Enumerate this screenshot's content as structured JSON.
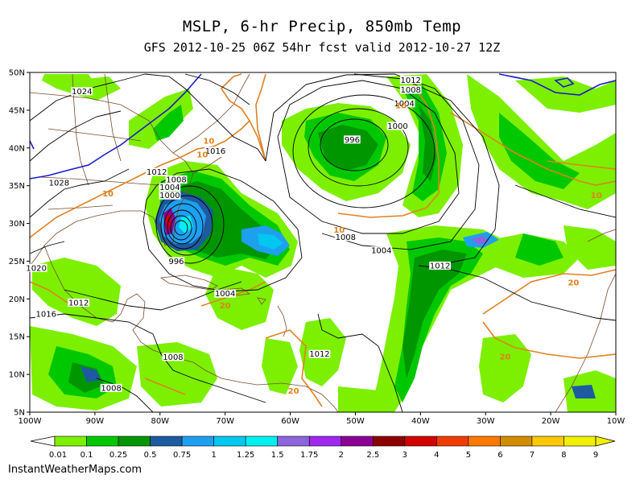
{
  "header": {
    "title": "MSLP, 6-hr Precip, 850mb Temp",
    "subtitle": "GFS 2012-10-25 06Z 54hr fcst valid 2012-10-27 12Z"
  },
  "map": {
    "lon_range": [
      -100,
      -10
    ],
    "lat_range": [
      5,
      50
    ],
    "lon_ticks": [
      {
        "lon": -100,
        "label": "100W"
      },
      {
        "lon": -90,
        "label": "90W"
      },
      {
        "lon": -80,
        "label": "80W"
      },
      {
        "lon": -70,
        "label": "70W"
      },
      {
        "lon": -60,
        "label": "60W"
      },
      {
        "lon": -50,
        "label": "50W"
      },
      {
        "lon": -40,
        "label": "40W"
      },
      {
        "lon": -30,
        "label": "30W"
      },
      {
        "lon": -20,
        "label": "20W"
      },
      {
        "lon": -10,
        "label": "10W"
      }
    ],
    "lat_ticks": [
      {
        "lat": 50,
        "label": "50N"
      },
      {
        "lat": 45,
        "label": "45N"
      },
      {
        "lat": 40,
        "label": "40N"
      },
      {
        "lat": 35,
        "label": "35N"
      },
      {
        "lat": 30,
        "label": "30N"
      },
      {
        "lat": 25,
        "label": "25N"
      },
      {
        "lat": 20,
        "label": "20N"
      },
      {
        "lat": 15,
        "label": "15N"
      },
      {
        "lat": 10,
        "label": "10N"
      },
      {
        "lat": 5,
        "label": "5N"
      }
    ],
    "colors": {
      "isobar": "#000000",
      "temp_contour": "#e08020",
      "freezing_line": "#1a1acc",
      "coastline": "#7a4a2a",
      "land": "#ffffff"
    },
    "isobar_labels": [
      {
        "text": "1024",
        "lon": -92,
        "lat": 47.3
      },
      {
        "text": "1012",
        "lon": -41.5,
        "lat": 48.8
      },
      {
        "text": "1008",
        "lon": -41.5,
        "lat": 47.5
      },
      {
        "text": "1004",
        "lon": -42.5,
        "lat": 45.7
      },
      {
        "text": "1000",
        "lon": -43.5,
        "lat": 42.7
      },
      {
        "text": "996",
        "lon": -50.5,
        "lat": 40.9
      },
      {
        "text": "1016",
        "lon": -71.5,
        "lat": 39.4
      },
      {
        "text": "1012",
        "lon": -80.5,
        "lat": 36.6
      },
      {
        "text": "1008",
        "lon": -77.5,
        "lat": 35.6
      },
      {
        "text": "1004",
        "lon": -78.5,
        "lat": 34.6
      },
      {
        "text": "1000",
        "lon": -78.5,
        "lat": 33.5
      },
      {
        "text": "996",
        "lon": -77.5,
        "lat": 24.8
      },
      {
        "text": "1028",
        "lon": -95.5,
        "lat": 35.2
      },
      {
        "text": "1004",
        "lon": -46,
        "lat": 26.2
      },
      {
        "text": "1008",
        "lon": -51.5,
        "lat": 28.0
      },
      {
        "text": "1012",
        "lon": -37,
        "lat": 24.2
      },
      {
        "text": "1004",
        "lon": -70,
        "lat": 20.5
      },
      {
        "text": "1012",
        "lon": -92.5,
        "lat": 19.3
      },
      {
        "text": "1016",
        "lon": -97.5,
        "lat": 17.8
      },
      {
        "text": "1020",
        "lon": -99,
        "lat": 23.9
      },
      {
        "text": "1008",
        "lon": -78,
        "lat": 12.1
      },
      {
        "text": "1008",
        "lon": -87.5,
        "lat": 8.0
      },
      {
        "text": "1012",
        "lon": -55.5,
        "lat": 12.5
      }
    ],
    "temp_labels": [
      {
        "text": "10",
        "lon": -43,
        "lat": 45.7
      },
      {
        "text": "10",
        "lon": -72.5,
        "lat": 41.0
      },
      {
        "text": "10",
        "lon": -73.5,
        "lat": 39.2
      },
      {
        "text": "10",
        "lon": -88,
        "lat": 34.0
      },
      {
        "text": "10",
        "lon": -52.5,
        "lat": 29.2
      },
      {
        "text": "10",
        "lon": -13,
        "lat": 33.8
      },
      {
        "text": "20",
        "lon": -16.5,
        "lat": 22.2
      },
      {
        "text": "20",
        "lon": -70,
        "lat": 19.2
      },
      {
        "text": "20",
        "lon": -27,
        "lat": 12.4
      },
      {
        "text": "20",
        "lon": -59.5,
        "lat": 7.9
      }
    ]
  },
  "colorbar": {
    "labels": [
      "0.01",
      "0.1",
      "0.25",
      "0.5",
      "0.75",
      "1",
      "1.25",
      "1.5",
      "1.75",
      "2",
      "2.5",
      "3",
      "4",
      "5",
      "6",
      "7",
      "8",
      "9"
    ],
    "colors": [
      "#7cf000",
      "#00c800",
      "#009600",
      "#1e5aa0",
      "#1ea0f0",
      "#00c8f0",
      "#00f0f0",
      "#8c64dc",
      "#a028f0",
      "#8c0096",
      "#8c0000",
      "#d20000",
      "#f03c00",
      "#ff7800",
      "#d28c00",
      "#ffc800",
      "#f0f000"
    ]
  },
  "footer": {
    "credit": "InstantWeatherMaps.com"
  }
}
